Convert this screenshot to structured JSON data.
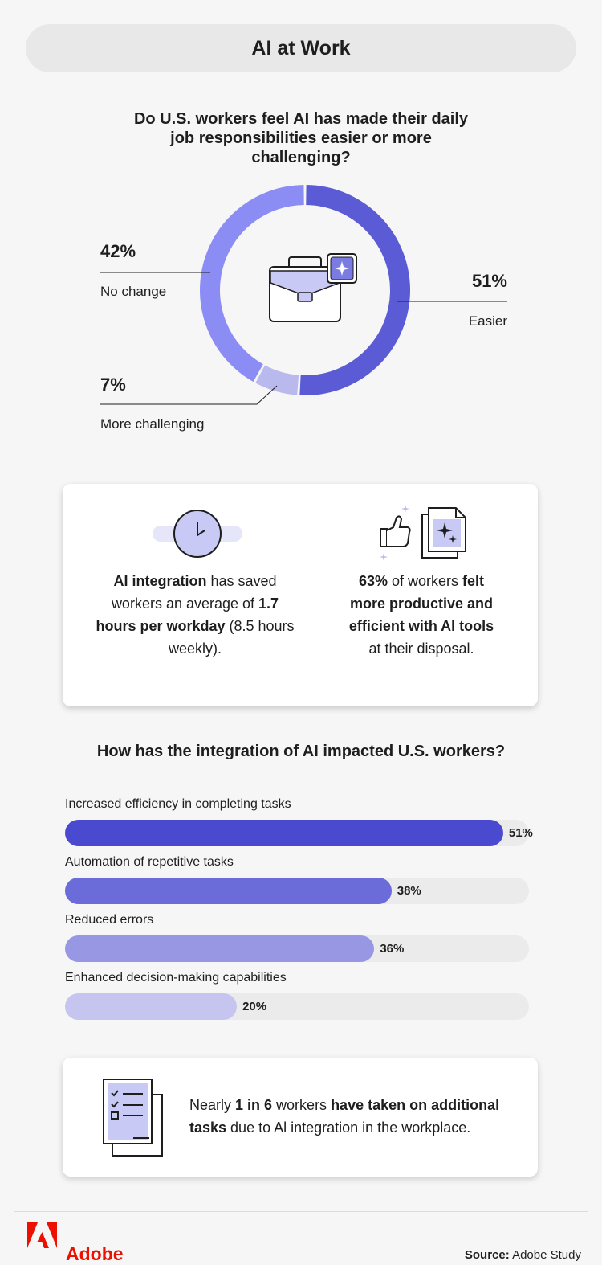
{
  "header": {
    "title": "AI at Work"
  },
  "chart_data": [
    {
      "type": "pie",
      "title": "Do U.S. workers feel AI has made their daily job responsibilities easier or more challenging?",
      "donut": true,
      "categories": [
        "Easier",
        "More challenging",
        "No change"
      ],
      "values": [
        51,
        7,
        42
      ],
      "value_labels": [
        "51%",
        "7%",
        "42%"
      ],
      "colors": [
        "#5b5bd6",
        "#b9b9ee",
        "#8b8df5"
      ]
    },
    {
      "type": "bar",
      "orientation": "horizontal",
      "title": "How has the integration of AI impacted U.S. workers?",
      "categories": [
        "Increased efficiency in completing tasks",
        "Automation of repetitive tasks",
        "Reduced errors",
        "Enhanced decision-making capabilities"
      ],
      "values": [
        51,
        38,
        36,
        20
      ],
      "value_labels": [
        "51%",
        "38%",
        "36%",
        "20%"
      ],
      "xlim": [
        0,
        54
      ],
      "colors": [
        "#4a4ad0",
        "#6b6bd9",
        "#9797e3",
        "#c5c5f0"
      ]
    }
  ],
  "stats": {
    "left": {
      "b1": "AI integration",
      "t1": " has saved workers an average of ",
      "b2": "1.7 hours per workday",
      "t2": " (8.5 hours weekly)."
    },
    "right": {
      "b1": "63%",
      "t1": " of workers ",
      "b2": "felt more productive and efficient with AI tools",
      "t2": " at their disposal."
    }
  },
  "callout": {
    "t1": "Nearly ",
    "b1": "1 in 6",
    "t2": " workers ",
    "b2": "have taken on additional tasks",
    "t3": " due to Al integration in the workplace."
  },
  "footer": {
    "brand": "Adobe",
    "source_label": "Source:",
    "source_value": " Adobe Study"
  },
  "colors": {
    "accent": "#5b5bd6",
    "adobe_red": "#eb1000"
  }
}
